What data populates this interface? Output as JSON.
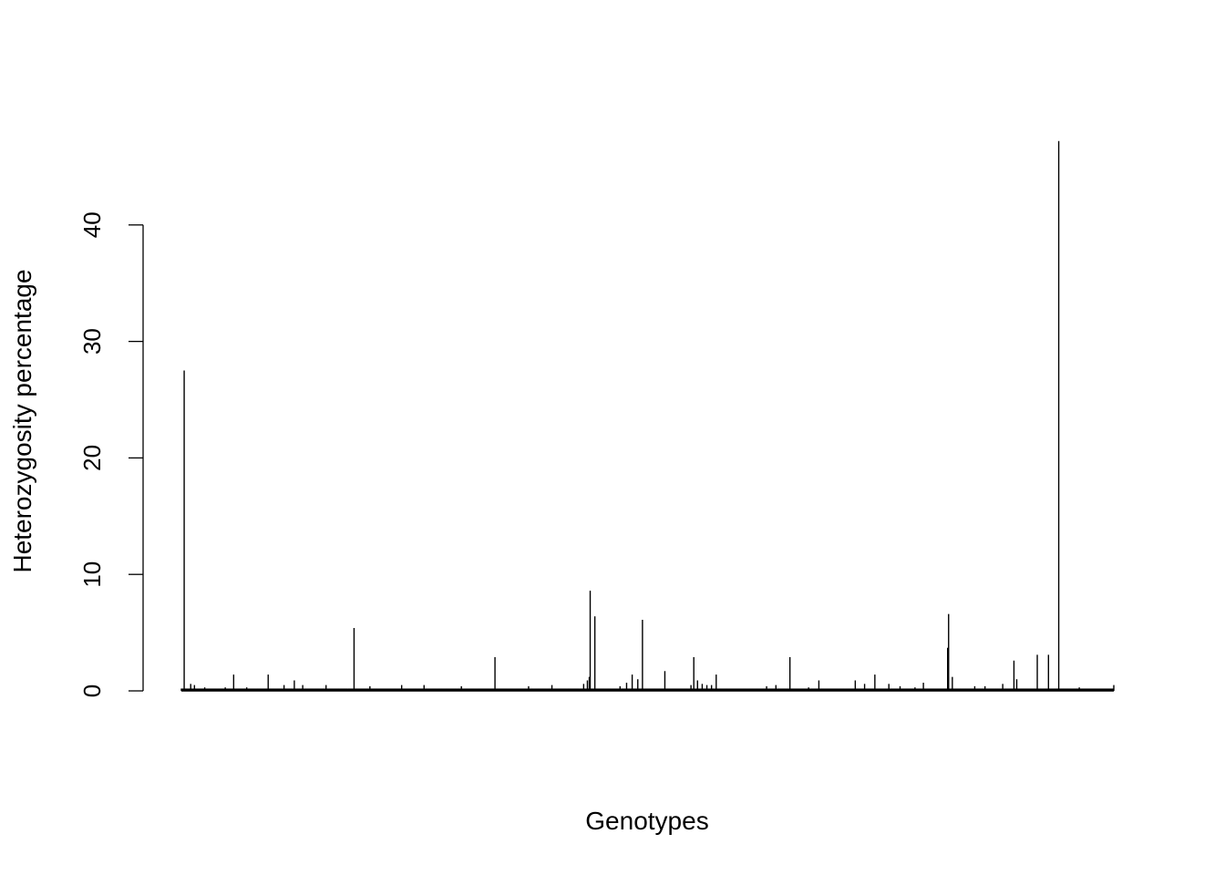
{
  "chart_data": {
    "type": "bar",
    "title": "",
    "xlabel": "Genotypes",
    "ylabel": "Heterozygosity percentage",
    "ylim": [
      0,
      47.5
    ],
    "yticks": [
      0,
      10,
      20,
      30,
      40
    ],
    "ytick_labels": [
      "0",
      "10",
      "20",
      "30",
      "40"
    ],
    "grid": false,
    "legend": "none",
    "bar_color": "#000000",
    "n_genotypes": 1000,
    "series": [
      {
        "values_sparse": [
          [
            3,
            27.5
          ],
          [
            10,
            0.6
          ],
          [
            14,
            0.5
          ],
          [
            25,
            0.3
          ],
          [
            47,
            0.3
          ],
          [
            56,
            1.4
          ],
          [
            70,
            0.3
          ],
          [
            93,
            1.4
          ],
          [
            110,
            0.5
          ],
          [
            121,
            0.9
          ],
          [
            130,
            0.5
          ],
          [
            155,
            0.5
          ],
          [
            185,
            5.4
          ],
          [
            202,
            0.4
          ],
          [
            236,
            0.5
          ],
          [
            260,
            0.5
          ],
          [
            300,
            0.4
          ],
          [
            336,
            2.9
          ],
          [
            372,
            0.4
          ],
          [
            397,
            0.5
          ],
          [
            431,
            0.6
          ],
          [
            435,
            0.9
          ],
          [
            437,
            1.2
          ],
          [
            438,
            8.6
          ],
          [
            443,
            6.4
          ],
          [
            470,
            0.4
          ],
          [
            477,
            0.7
          ],
          [
            483,
            1.4
          ],
          [
            489,
            1.0
          ],
          [
            494,
            6.1
          ],
          [
            518,
            1.7
          ],
          [
            546,
            0.5
          ],
          [
            549,
            2.9
          ],
          [
            553,
            0.9
          ],
          [
            558,
            0.6
          ],
          [
            563,
            0.5
          ],
          [
            568,
            0.5
          ],
          [
            573,
            1.4
          ],
          [
            627,
            0.4
          ],
          [
            637,
            0.5
          ],
          [
            652,
            2.9
          ],
          [
            672,
            0.3
          ],
          [
            683,
            0.9
          ],
          [
            722,
            0.9
          ],
          [
            732,
            0.6
          ],
          [
            743,
            1.4
          ],
          [
            758,
            0.6
          ],
          [
            770,
            0.4
          ],
          [
            786,
            0.3
          ],
          [
            795,
            0.7
          ],
          [
            821,
            3.7
          ],
          [
            822,
            6.6
          ],
          [
            826,
            1.2
          ],
          [
            850,
            0.4
          ],
          [
            861,
            0.4
          ],
          [
            880,
            0.6
          ],
          [
            892,
            2.6
          ],
          [
            895,
            1.0
          ],
          [
            917,
            3.1
          ],
          [
            929,
            3.1
          ],
          [
            940,
            47.2
          ],
          [
            962,
            0.3
          ],
          [
            999,
            0.5
          ]
        ],
        "default_value": 0.2
      }
    ]
  }
}
